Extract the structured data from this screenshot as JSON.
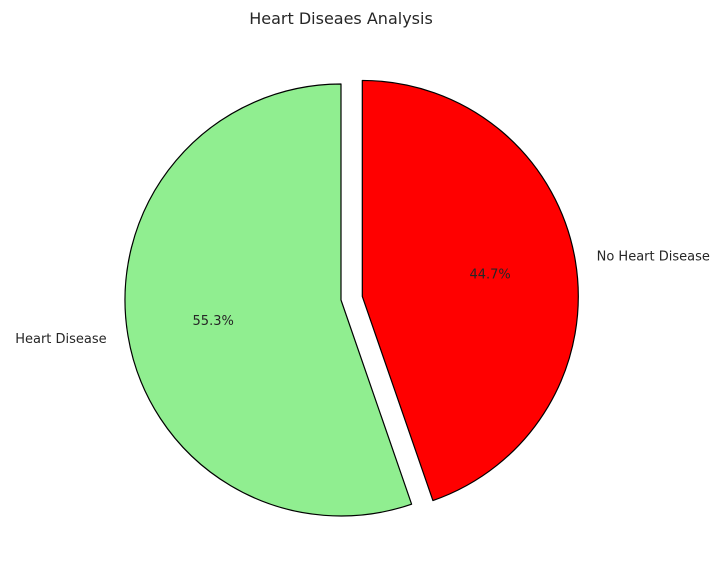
{
  "chart_data": {
    "type": "pie",
    "title": "Heart Diseaes Analysis",
    "slices": [
      {
        "label": "Heart Disease",
        "value": 55.3,
        "percent_label": "55.3%",
        "color": "#90ee90",
        "explode": false
      },
      {
        "label": "No Heart Disease",
        "value": 44.7,
        "percent_label": "44.7%",
        "color": "#ff0000",
        "explode": true
      }
    ],
    "start_angle": 90,
    "direction": "counterclockwise",
    "edge_color": "#000000",
    "legend": "none"
  }
}
